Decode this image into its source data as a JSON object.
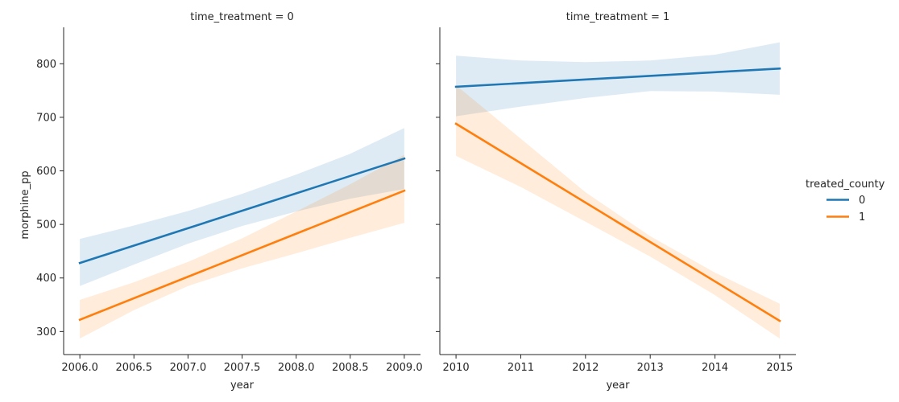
{
  "chart_data": {
    "type": "line",
    "ylabel": "morphine_pp",
    "legend": {
      "title": "treated_county",
      "placement": "right",
      "entries": [
        {
          "label": "0",
          "color": "#1f77b4"
        },
        {
          "label": "1",
          "color": "#ff7f0e"
        }
      ]
    },
    "y_ticks": [
      "300",
      "400",
      "500",
      "600",
      "700",
      "800"
    ],
    "ylim": [
      257,
      868
    ],
    "panels": [
      {
        "title": "time_treatment = 0",
        "xlabel": "year",
        "xlim": [
          2005.85,
          2009.15
        ],
        "x_ticks": [
          "2006.0",
          "2006.5",
          "2007.0",
          "2007.5",
          "2008.0",
          "2008.5",
          "2009.0"
        ],
        "x_tick_values": [
          2006.0,
          2006.5,
          2007.0,
          2007.5,
          2008.0,
          2008.5,
          2009.0
        ],
        "series": [
          {
            "name": "0",
            "color": "#1f77b4",
            "x": [
              2006.0,
              2009.0
            ],
            "y": [
              428,
              623
            ],
            "ci_x": [
              2006.0,
              2006.5,
              2007.0,
              2007.5,
              2008.0,
              2008.5,
              2009.0
            ],
            "ci_upper": [
              473,
              498,
              525,
              557,
              593,
              632,
              680
            ],
            "ci_lower": [
              385,
              425,
              464,
              497,
              524,
              548,
              566
            ]
          },
          {
            "name": "1",
            "color": "#ff7f0e",
            "x": [
              2006.0,
              2009.0
            ],
            "y": [
              322,
              563
            ],
            "ci_x": [
              2006.0,
              2006.5,
              2007.0,
              2007.5,
              2008.0,
              2008.5,
              2009.0
            ],
            "ci_upper": [
              359,
              392,
              430,
              474,
              524,
              575,
              630
            ],
            "ci_lower": [
              287,
              340,
              385,
              418,
              446,
              475,
              503
            ]
          }
        ]
      },
      {
        "title": "time_treatment = 1",
        "xlabel": "year",
        "xlim": [
          2009.75,
          2015.25
        ],
        "x_ticks": [
          "2010",
          "2011",
          "2012",
          "2013",
          "2014",
          "2015"
        ],
        "x_tick_values": [
          2010,
          2011,
          2012,
          2013,
          2014,
          2015
        ],
        "series": [
          {
            "name": "0",
            "color": "#1f77b4",
            "x": [
              2010,
              2015
            ],
            "y": [
              757,
              791
            ],
            "ci_x": [
              2010,
              2011,
              2012,
              2013,
              2014,
              2015
            ],
            "ci_upper": [
              815,
              806,
              803,
              806,
              817,
              840
            ],
            "ci_lower": [
              702,
              720,
              736,
              749,
              748,
              742
            ]
          },
          {
            "name": "1",
            "color": "#ff7f0e",
            "x": [
              2010,
              2015
            ],
            "y": [
              688,
              320
            ],
            "ci_x": [
              2010,
              2011,
              2012,
              2013,
              2014,
              2015
            ],
            "ci_upper": [
              760,
              660,
              560,
              478,
              410,
              352
            ],
            "ci_lower": [
              628,
              570,
              505,
              440,
              368,
              287
            ]
          }
        ]
      }
    ]
  }
}
